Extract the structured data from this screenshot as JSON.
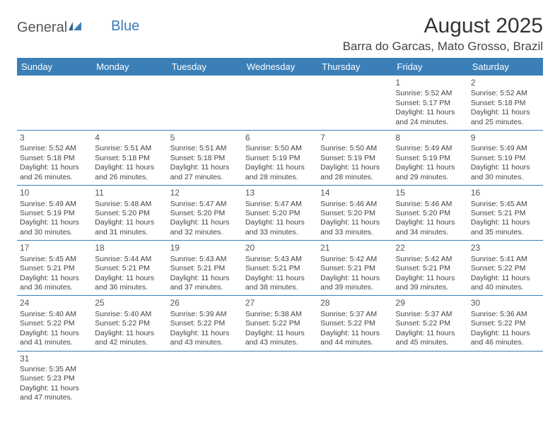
{
  "logo": {
    "general": "General",
    "blue": "Blue"
  },
  "title": "August 2025",
  "location": "Barra do Garcas, Mato Grosso, Brazil",
  "colors": {
    "header_bg": "#3b7fb8",
    "header_text": "#ffffff",
    "row_border": "#3b7fb8",
    "body_text": "#444444",
    "title_text": "#333333"
  },
  "dayNames": [
    "Sunday",
    "Monday",
    "Tuesday",
    "Wednesday",
    "Thursday",
    "Friday",
    "Saturday"
  ],
  "weeks": [
    [
      null,
      null,
      null,
      null,
      null,
      {
        "d": "1",
        "sr": "5:52 AM",
        "ss": "5:17 PM",
        "dl1": "11 hours",
        "dl2": "and 24 minutes."
      },
      {
        "d": "2",
        "sr": "5:52 AM",
        "ss": "5:18 PM",
        "dl1": "11 hours",
        "dl2": "and 25 minutes."
      }
    ],
    [
      {
        "d": "3",
        "sr": "5:52 AM",
        "ss": "5:18 PM",
        "dl1": "11 hours",
        "dl2": "and 26 minutes."
      },
      {
        "d": "4",
        "sr": "5:51 AM",
        "ss": "5:18 PM",
        "dl1": "11 hours",
        "dl2": "and 26 minutes."
      },
      {
        "d": "5",
        "sr": "5:51 AM",
        "ss": "5:18 PM",
        "dl1": "11 hours",
        "dl2": "and 27 minutes."
      },
      {
        "d": "6",
        "sr": "5:50 AM",
        "ss": "5:19 PM",
        "dl1": "11 hours",
        "dl2": "and 28 minutes."
      },
      {
        "d": "7",
        "sr": "5:50 AM",
        "ss": "5:19 PM",
        "dl1": "11 hours",
        "dl2": "and 28 minutes."
      },
      {
        "d": "8",
        "sr": "5:49 AM",
        "ss": "5:19 PM",
        "dl1": "11 hours",
        "dl2": "and 29 minutes."
      },
      {
        "d": "9",
        "sr": "5:49 AM",
        "ss": "5:19 PM",
        "dl1": "11 hours",
        "dl2": "and 30 minutes."
      }
    ],
    [
      {
        "d": "10",
        "sr": "5:49 AM",
        "ss": "5:19 PM",
        "dl1": "11 hours",
        "dl2": "and 30 minutes."
      },
      {
        "d": "11",
        "sr": "5:48 AM",
        "ss": "5:20 PM",
        "dl1": "11 hours",
        "dl2": "and 31 minutes."
      },
      {
        "d": "12",
        "sr": "5:47 AM",
        "ss": "5:20 PM",
        "dl1": "11 hours",
        "dl2": "and 32 minutes."
      },
      {
        "d": "13",
        "sr": "5:47 AM",
        "ss": "5:20 PM",
        "dl1": "11 hours",
        "dl2": "and 33 minutes."
      },
      {
        "d": "14",
        "sr": "5:46 AM",
        "ss": "5:20 PM",
        "dl1": "11 hours",
        "dl2": "and 33 minutes."
      },
      {
        "d": "15",
        "sr": "5:46 AM",
        "ss": "5:20 PM",
        "dl1": "11 hours",
        "dl2": "and 34 minutes."
      },
      {
        "d": "16",
        "sr": "5:45 AM",
        "ss": "5:21 PM",
        "dl1": "11 hours",
        "dl2": "and 35 minutes."
      }
    ],
    [
      {
        "d": "17",
        "sr": "5:45 AM",
        "ss": "5:21 PM",
        "dl1": "11 hours",
        "dl2": "and 36 minutes."
      },
      {
        "d": "18",
        "sr": "5:44 AM",
        "ss": "5:21 PM",
        "dl1": "11 hours",
        "dl2": "and 36 minutes."
      },
      {
        "d": "19",
        "sr": "5:43 AM",
        "ss": "5:21 PM",
        "dl1": "11 hours",
        "dl2": "and 37 minutes."
      },
      {
        "d": "20",
        "sr": "5:43 AM",
        "ss": "5:21 PM",
        "dl1": "11 hours",
        "dl2": "and 38 minutes."
      },
      {
        "d": "21",
        "sr": "5:42 AM",
        "ss": "5:21 PM",
        "dl1": "11 hours",
        "dl2": "and 39 minutes."
      },
      {
        "d": "22",
        "sr": "5:42 AM",
        "ss": "5:21 PM",
        "dl1": "11 hours",
        "dl2": "and 39 minutes."
      },
      {
        "d": "23",
        "sr": "5:41 AM",
        "ss": "5:22 PM",
        "dl1": "11 hours",
        "dl2": "and 40 minutes."
      }
    ],
    [
      {
        "d": "24",
        "sr": "5:40 AM",
        "ss": "5:22 PM",
        "dl1": "11 hours",
        "dl2": "and 41 minutes."
      },
      {
        "d": "25",
        "sr": "5:40 AM",
        "ss": "5:22 PM",
        "dl1": "11 hours",
        "dl2": "and 42 minutes."
      },
      {
        "d": "26",
        "sr": "5:39 AM",
        "ss": "5:22 PM",
        "dl1": "11 hours",
        "dl2": "and 43 minutes."
      },
      {
        "d": "27",
        "sr": "5:38 AM",
        "ss": "5:22 PM",
        "dl1": "11 hours",
        "dl2": "and 43 minutes."
      },
      {
        "d": "28",
        "sr": "5:37 AM",
        "ss": "5:22 PM",
        "dl1": "11 hours",
        "dl2": "and 44 minutes."
      },
      {
        "d": "29",
        "sr": "5:37 AM",
        "ss": "5:22 PM",
        "dl1": "11 hours",
        "dl2": "and 45 minutes."
      },
      {
        "d": "30",
        "sr": "5:36 AM",
        "ss": "5:22 PM",
        "dl1": "11 hours",
        "dl2": "and 46 minutes."
      }
    ],
    [
      {
        "d": "31",
        "sr": "5:35 AM",
        "ss": "5:23 PM",
        "dl1": "11 hours",
        "dl2": "and 47 minutes."
      },
      null,
      null,
      null,
      null,
      null,
      null
    ]
  ],
  "labels": {
    "sunrise": "Sunrise: ",
    "sunset": "Sunset: ",
    "daylight": "Daylight: "
  }
}
